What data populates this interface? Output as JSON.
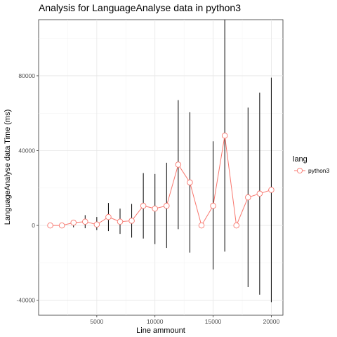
{
  "chart_data": {
    "type": "line",
    "title": "Analysis for LanguageAnalyse data in python3",
    "xlabel": "Line ammount",
    "ylabel": "LanguageAnalyse data Time (ms)",
    "xlim": [
      0,
      21000
    ],
    "ylim": [
      -48000,
      110000
    ],
    "x_ticks": [
      5000,
      10000,
      15000,
      20000
    ],
    "x_tick_labels": [
      "5000",
      "10000",
      "15000",
      "20000"
    ],
    "y_ticks": [
      -40000,
      0,
      40000,
      80000
    ],
    "y_tick_labels": [
      "-40000",
      "0",
      "40000",
      "80000"
    ],
    "grid": true,
    "legend": {
      "title": "lang",
      "position": "right"
    },
    "series": [
      {
        "name": "python3",
        "color": "#F8766D",
        "x": [
          1000,
          2000,
          3000,
          4000,
          5000,
          6000,
          7000,
          8000,
          9000,
          10000,
          11000,
          12000,
          13000,
          14000,
          15000,
          16000,
          17000,
          18000,
          19000,
          20000
        ],
        "y": [
          0,
          0,
          1500,
          2000,
          500,
          4500,
          2000,
          2500,
          10500,
          9000,
          10500,
          32500,
          23000,
          0,
          10500,
          48000,
          0,
          15000,
          17000,
          19000
        ],
        "ymin": [
          0,
          -500,
          -1000,
          -1500,
          -2500,
          -3000,
          -4500,
          -6500,
          -7000,
          -10000,
          -12000,
          -2000,
          -14500,
          0,
          -23500,
          -14000,
          0,
          -33000,
          -37000,
          -41000
        ],
        "ymax": [
          0,
          500,
          3000,
          5500,
          4500,
          12000,
          9000,
          11500,
          28000,
          27500,
          33500,
          67000,
          60500,
          0,
          45000,
          110000,
          0,
          63000,
          71000,
          79000
        ]
      }
    ]
  }
}
